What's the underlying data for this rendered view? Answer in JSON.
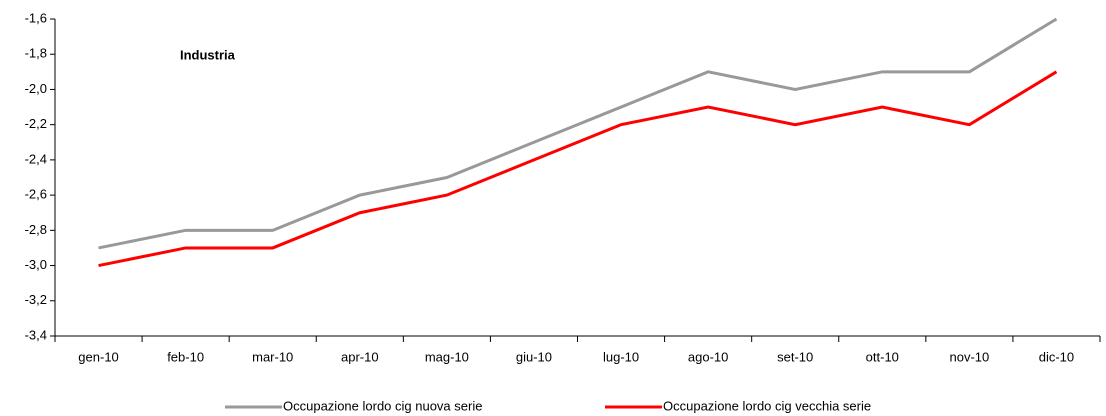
{
  "chart_data": {
    "type": "line",
    "annotation": "Industria",
    "categories": [
      "gen-10",
      "feb-10",
      "mar-10",
      "apr-10",
      "mag-10",
      "giu-10",
      "lug-10",
      "ago-10",
      "set-10",
      "ott-10",
      "nov-10",
      "dic-10"
    ],
    "series": [
      {
        "name": "Occupazione lordo cig nuova serie",
        "color": "#999999",
        "values": [
          -2.9,
          -2.8,
          -2.8,
          -2.6,
          -2.5,
          -2.3,
          -2.1,
          -1.9,
          -2.0,
          -1.9,
          -1.9,
          -1.6
        ]
      },
      {
        "name": "Occupazione lordo cig vecchia serie",
        "color": "#ff0000",
        "values": [
          -3.0,
          -2.9,
          -2.9,
          -2.7,
          -2.6,
          -2.4,
          -2.2,
          -2.1,
          -2.2,
          -2.1,
          -2.2,
          -1.9
        ]
      }
    ],
    "ylim": [
      -3.4,
      -1.6
    ],
    "yticks": [
      {
        "value": -3.4,
        "label": "-3,4"
      },
      {
        "value": -3.2,
        "label": "-3,2"
      },
      {
        "value": -3.0,
        "label": "-3,0"
      },
      {
        "value": -2.8,
        "label": "-2,8"
      },
      {
        "value": -2.6,
        "label": "-2,6"
      },
      {
        "value": -2.4,
        "label": "-2,4"
      },
      {
        "value": -2.2,
        "label": "-2,2"
      },
      {
        "value": -2.0,
        "label": "-2,0"
      },
      {
        "value": -1.8,
        "label": "-1,8"
      },
      {
        "value": -1.6,
        "label": "-1,6"
      }
    ],
    "legend": "bottom"
  }
}
